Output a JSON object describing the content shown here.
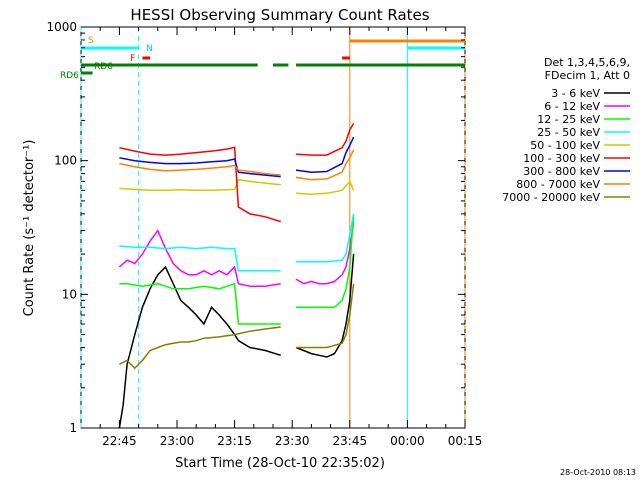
{
  "chart_data": {
    "type": "line",
    "title": "HESSI Observing Summary Count Rates",
    "xlabel": "Start Time (28-Oct-10 22:35:02)",
    "ylabel": "Count Rate (s⁻¹ detector⁻¹)",
    "ylim": [
      1,
      1000
    ],
    "yscale": "log",
    "xlim_minutes_after_2235": [
      0,
      100
    ],
    "x_ticks": [
      "22:45",
      "23:00",
      "23:15",
      "23:30",
      "23:45",
      "00:00",
      "00:15"
    ],
    "x_tick_minutes": [
      10,
      25,
      40,
      55,
      70,
      85,
      100
    ],
    "y_ticks": [
      "1",
      "10",
      "100",
      "1000"
    ],
    "y_tick_values": [
      1,
      10,
      100,
      1000
    ],
    "legend_title": [
      "Det 1,3,4,5,6,9,",
      "FDecim 1, Att 0"
    ],
    "legend_position": "right",
    "footer": "28-Oct-2010 08:13",
    "series": [
      {
        "name": "3 - 6 keV",
        "color": "#000000",
        "x": [
          10,
          11,
          12,
          14,
          16,
          18,
          20,
          22,
          24,
          26,
          28,
          30,
          32,
          34,
          36,
          38,
          40,
          41,
          44,
          48,
          52,
          54,
          56,
          58,
          60,
          62,
          64,
          66,
          68,
          69,
          70,
          71
        ],
        "y": [
          1,
          1.5,
          3,
          5,
          8,
          11,
          14,
          16,
          12,
          9,
          8,
          7,
          6,
          8,
          7,
          6,
          5,
          4.5,
          4,
          3.8,
          3.5,
          null,
          4,
          3.8,
          3.6,
          3.5,
          3.4,
          3.6,
          4.5,
          6,
          9,
          20
        ]
      },
      {
        "name": "6 - 12 keV",
        "color": "#ff00ff",
        "x": [
          10,
          12,
          14,
          16,
          18,
          20,
          22,
          24,
          26,
          28,
          30,
          32,
          34,
          36,
          38,
          40,
          41,
          44,
          48,
          52,
          54,
          56,
          58,
          60,
          62,
          64,
          66,
          68,
          69,
          70,
          71
        ],
        "y": [
          16,
          18,
          17,
          20,
          25,
          30,
          22,
          17,
          15,
          14,
          14,
          15,
          14,
          15,
          14,
          16,
          12,
          11.5,
          11.5,
          12,
          null,
          13,
          12,
          12.5,
          12,
          12,
          12.5,
          14,
          16,
          22,
          35
        ]
      },
      {
        "name": "12 - 25 keV",
        "color": "#00ff00",
        "x": [
          10,
          12,
          16,
          20,
          24,
          28,
          32,
          36,
          40,
          41,
          44,
          48,
          52,
          54,
          56,
          58,
          62,
          66,
          68,
          69,
          70,
          71
        ],
        "y": [
          12,
          12,
          11.5,
          12,
          11,
          11,
          11.5,
          11,
          12,
          6,
          6,
          6,
          6,
          null,
          8,
          8,
          8,
          8,
          9,
          11,
          16,
          40
        ]
      },
      {
        "name": "25 - 50 keV",
        "color": "#00ffff",
        "x": [
          10,
          14,
          18,
          22,
          26,
          30,
          34,
          38,
          40,
          41,
          44,
          48,
          52,
          54,
          56,
          60,
          64,
          68,
          69,
          70,
          71
        ],
        "y": [
          23,
          22.5,
          22.5,
          22,
          22.5,
          22,
          22.5,
          22,
          22,
          15,
          15,
          15,
          15,
          null,
          17.5,
          17.5,
          17.5,
          18,
          20,
          28,
          40
        ]
      },
      {
        "name": "50 - 100 keV",
        "color": "#cccc00",
        "x": [
          10,
          14,
          18,
          22,
          26,
          30,
          34,
          38,
          40,
          41,
          44,
          48,
          52,
          54,
          56,
          60,
          64,
          68,
          69,
          70,
          71
        ],
        "y": [
          62,
          61,
          60,
          60,
          60.5,
          60,
          60,
          60.5,
          61,
          72,
          70,
          68,
          66,
          null,
          57,
          56,
          57,
          60,
          65,
          70,
          60
        ]
      },
      {
        "name": "100 - 300 keV",
        "color": "#ff0000",
        "x": [
          10,
          14,
          18,
          22,
          26,
          30,
          34,
          38,
          40,
          41,
          44,
          48,
          52,
          54,
          56,
          60,
          64,
          68,
          69,
          70,
          71
        ],
        "y": [
          125,
          118,
          112,
          110,
          112,
          115,
          118,
          122,
          126,
          45,
          40,
          38,
          35,
          null,
          112,
          110,
          110,
          125,
          140,
          170,
          190
        ]
      },
      {
        "name": "300 - 800 keV",
        "color": "#0000ff",
        "x": [
          10,
          14,
          18,
          22,
          26,
          30,
          34,
          38,
          40,
          41,
          44,
          48,
          52,
          54,
          56,
          60,
          64,
          68,
          69,
          70,
          71
        ],
        "y": [
          105,
          100,
          97,
          95,
          95,
          96,
          98,
          100,
          103,
          82,
          80,
          78,
          76,
          null,
          85,
          82,
          83,
          95,
          115,
          130,
          150
        ]
      },
      {
        "name": "800 - 7000 keV",
        "color": "#ff8000",
        "x": [
          10,
          14,
          18,
          22,
          26,
          30,
          34,
          38,
          40,
          41,
          44,
          48,
          52,
          54,
          56,
          60,
          64,
          68,
          69,
          70,
          71
        ],
        "y": [
          95,
          90,
          86,
          84,
          85,
          86,
          88,
          90,
          92,
          85,
          83,
          80,
          78,
          null,
          75,
          72,
          73,
          82,
          95,
          105,
          120
        ]
      },
      {
        "name": "7000 - 20000 keV",
        "color": "#808000",
        "x": [
          10,
          12,
          14,
          16,
          18,
          20,
          22,
          24,
          26,
          28,
          30,
          32,
          36,
          40,
          44,
          48,
          52,
          54,
          56,
          60,
          64,
          68,
          69,
          70,
          71
        ],
        "y": [
          3,
          3.2,
          2.8,
          3.2,
          3.8,
          4,
          4.2,
          4.3,
          4.4,
          4.4,
          4.5,
          4.7,
          4.8,
          5,
          5.3,
          5.5,
          5.7,
          null,
          4,
          4,
          4,
          4.3,
          5,
          7,
          12
        ]
      }
    ],
    "bars": [
      {
        "name": "RD6",
        "color": "#008000",
        "segments": [
          [
            0,
            3
          ]
        ]
      },
      {
        "name": "RD6",
        "color": "#008000",
        "segments": [
          [
            0,
            46
          ],
          [
            50,
            54
          ],
          [
            56,
            100
          ]
        ]
      },
      {
        "name": "S",
        "color": "#00ffff",
        "segments": [
          [
            0,
            15
          ],
          [
            85,
            100
          ]
        ]
      },
      {
        "name": "F",
        "color": "#ff0000",
        "segments": [
          [
            16,
            18
          ],
          [
            68,
            70
          ]
        ]
      },
      {
        "name": "",
        "color": "#ff8000",
        "segments": [
          [
            70,
            100
          ]
        ]
      }
    ],
    "bar_labels": [
      "S",
      "N",
      "F",
      "RD6",
      "RD6"
    ],
    "vlines": [
      {
        "x": 0,
        "color": "#00ffff",
        "style": "dashed"
      },
      {
        "x": 15,
        "color": "#00ffff",
        "style": "dashed"
      },
      {
        "x": 70,
        "color": "#ff8000",
        "style": "solid"
      },
      {
        "x": 85,
        "color": "#00ffff",
        "style": "solid"
      },
      {
        "x": 100,
        "color": "#ff8000",
        "style": "dashed"
      }
    ]
  }
}
